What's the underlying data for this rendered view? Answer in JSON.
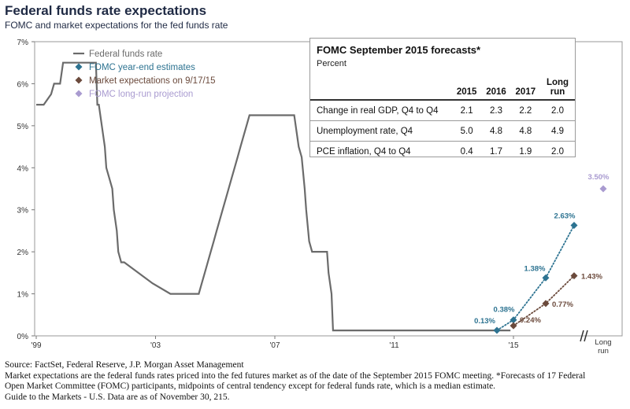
{
  "title": "Federal funds rate expectations",
  "subtitle": "FOMC and market expectations for the fed funds rate",
  "colors": {
    "fed_funds": "#6b6b6b",
    "fomc": "#2d7391",
    "market": "#6b4a3c",
    "long_run": "#a99bd0",
    "axis": "#555555",
    "text": "#1f2a44"
  },
  "chart_data": {
    "type": "line",
    "y_ticks": [
      "0%",
      "1%",
      "2%",
      "3%",
      "4%",
      "5%",
      "6%",
      "7%"
    ],
    "x_ticks": [
      "'99",
      "'03",
      "'07",
      "'11",
      "'15"
    ],
    "x_break_label": "Long run",
    "ylim": [
      0,
      7
    ],
    "legend_position": "top-left",
    "series": [
      {
        "name": "Federal funds rate",
        "style": "line",
        "x": [
          1999.0,
          1999.25,
          1999.5,
          1999.6,
          1999.8,
          1999.9,
          2000.1,
          2000.3,
          2000.4,
          2000.5,
          2001.0,
          2001.05,
          2001.1,
          2001.2,
          2001.3,
          2001.35,
          2001.45,
          2001.55,
          2001.6,
          2001.7,
          2001.75,
          2001.85,
          2001.95,
          2002.9,
          2003.5,
          2004.45,
          2004.55,
          2004.65,
          2004.75,
          2004.85,
          2004.95,
          2005.05,
          2005.15,
          2005.25,
          2005.35,
          2005.45,
          2005.55,
          2005.65,
          2005.75,
          2005.85,
          2005.95,
          2006.05,
          2006.15,
          2006.25,
          2006.45,
          2007.65,
          2007.75,
          2007.8,
          2007.9,
          2008.0,
          2008.05,
          2008.15,
          2008.25,
          2008.3,
          2008.75,
          2008.8,
          2008.9,
          2008.95,
          2014.9
        ],
        "y": [
          5.5,
          5.5,
          5.75,
          6.0,
          6.0,
          6.5,
          6.5,
          6.5,
          6.5,
          6.5,
          6.5,
          5.5,
          5.5,
          5.0,
          4.5,
          4.0,
          3.75,
          3.5,
          3.0,
          2.5,
          2.0,
          1.75,
          1.75,
          1.25,
          1.0,
          1.0,
          1.25,
          1.5,
          1.75,
          2.0,
          2.25,
          2.5,
          2.75,
          3.0,
          3.25,
          3.5,
          3.75,
          4.0,
          4.25,
          4.5,
          4.75,
          5.0,
          5.25,
          5.25,
          5.25,
          5.25,
          4.75,
          4.5,
          4.25,
          3.5,
          3.0,
          2.25,
          2.0,
          2.0,
          2.0,
          1.5,
          1.0,
          0.13,
          0.13
        ]
      },
      {
        "name": "FOMC year-end estimates",
        "style": "dotted-markers",
        "x": [
          "2015 current",
          "2015",
          "2016",
          "2017"
        ],
        "y": [
          0.13,
          0.38,
          1.38,
          2.63
        ],
        "labels": [
          "0.13%",
          "0.38%",
          "1.38%",
          "2.63%"
        ]
      },
      {
        "name": "Market expectations on 9/17/15",
        "style": "dotted-markers",
        "x": [
          "2015",
          "2016",
          "2017"
        ],
        "y": [
          0.24,
          0.77,
          1.43
        ],
        "labels": [
          "0.24%",
          "0.77%",
          "1.43%"
        ]
      },
      {
        "name": "FOMC long-run projection",
        "style": "marker",
        "x": [
          "Long run"
        ],
        "y": [
          3.5
        ],
        "labels": [
          "3.50%"
        ]
      }
    ]
  },
  "forecast_table": {
    "title": "FOMC September 2015 forecasts*",
    "subtitle": "Percent",
    "headers": [
      "",
      "2015",
      "2016",
      "2017",
      "Long run"
    ],
    "rows": [
      {
        "label": "Change in real GDP, Q4 to Q4",
        "values": [
          "2.1",
          "2.3",
          "2.2",
          "2.0"
        ]
      },
      {
        "label": "Unemployment rate, Q4",
        "values": [
          "5.0",
          "4.8",
          "4.8",
          "4.9"
        ]
      },
      {
        "label": "PCE inflation, Q4 to Q4",
        "values": [
          "0.4",
          "1.7",
          "1.9",
          "2.0"
        ]
      }
    ]
  },
  "footnotes": [
    "Source: FactSet, Federal Reserve, J.P. Morgan Asset Management",
    "Market expectations are the federal funds rates priced into the fed futures market as of the date of the September 2015 FOMC meeting. *Forecasts of 17 Federal",
    "Open Market Committee (FOMC) participants, midpoints of central tendency except for federal funds rate, which is a median estimate.",
    "Guide to the Markets - U.S. Data are as of November 30, 215."
  ]
}
